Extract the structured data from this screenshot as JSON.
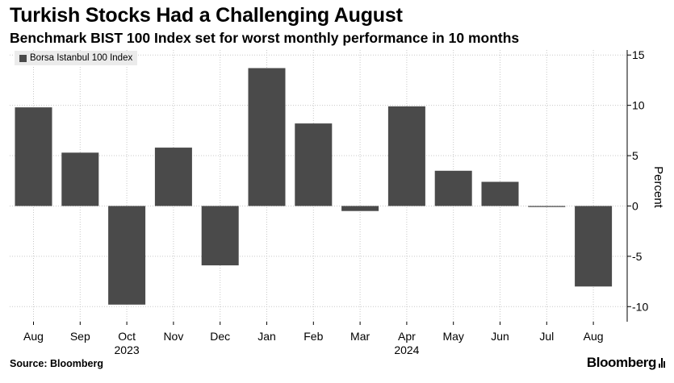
{
  "header": {
    "title": "Turkish Stocks Had a Challenging August",
    "subtitle": "Benchmark BIST 100 Index set for worst monthly performance in 10 months"
  },
  "footer": {
    "source": "Source: Bloomberg",
    "brand": "Bloomberg"
  },
  "colors": {
    "bar": "#4a4a4a",
    "grid": "#c8c8c8",
    "axis": "#000000",
    "legend_bg": "#ebebeb"
  },
  "chart_data": {
    "type": "bar",
    "title": "Turkish Stocks Had a Challenging August",
    "subtitle": "Benchmark BIST 100 Index set for worst monthly performance in 10 months",
    "categories": [
      "Aug",
      "Sep",
      "Oct",
      "Nov",
      "Dec",
      "Jan",
      "Feb",
      "Mar",
      "Apr",
      "May",
      "Jun",
      "Jul",
      "Aug"
    ],
    "year_labels": [
      {
        "label": "2023",
        "category_index": 2
      },
      {
        "label": "2024",
        "category_index": 8
      }
    ],
    "series": [
      {
        "name": "Borsa Istanbul 100 Index",
        "values": [
          9.8,
          5.3,
          -9.8,
          5.8,
          -5.9,
          13.7,
          8.2,
          -0.5,
          9.9,
          3.5,
          2.4,
          -0.1,
          -8.0
        ]
      }
    ],
    "xlabel": "",
    "ylabel": "Percent",
    "ylim": [
      -11.5,
      15.5
    ],
    "yticks": [
      15,
      10,
      5,
      0,
      -5,
      -10
    ],
    "ytick_labels": [
      "15",
      "10",
      "5",
      "0",
      "-5",
      "-10"
    ],
    "grid": true,
    "legend": "top-left",
    "y_axis_side": "right"
  }
}
